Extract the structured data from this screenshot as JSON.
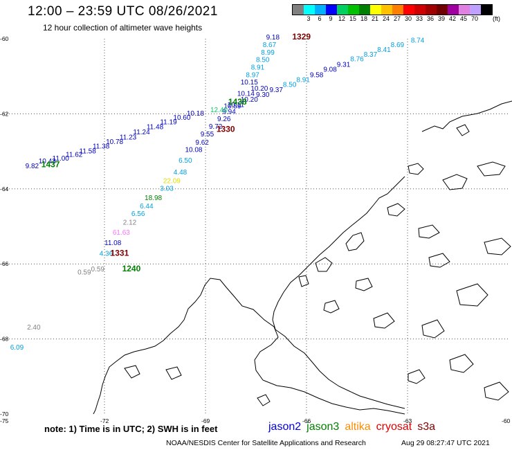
{
  "header": {
    "title": "12:00 – 23:59 UTC 08/26/2021",
    "subtitle": "12 hour collection of altimeter wave heights"
  },
  "colorbar": {
    "unit": "(ft)",
    "colors": [
      "#808080",
      "#00ffff",
      "#00b0ff",
      "#0000ff",
      "#00d060",
      "#00c000",
      "#008000",
      "#ffff00",
      "#ffc000",
      "#ff8000",
      "#ff0000",
      "#d00000",
      "#a00000",
      "#700000",
      "#a000a0",
      "#e080e0",
      "#c0a0ff",
      "#000000"
    ],
    "labels": [
      "",
      "3",
      "6",
      "9",
      "12",
      "15",
      "18",
      "21",
      "24",
      "27",
      "30",
      "33",
      "36",
      "39",
      "42",
      "45",
      "70",
      ""
    ]
  },
  "axes": {
    "lat_labels": [
      "-60",
      "-62",
      "-64",
      "-66",
      "-68",
      "-70"
    ],
    "lon_labels": [
      "-75",
      "-72",
      "-69",
      "-66",
      "-63",
      "-60"
    ]
  },
  "tracks": [
    {
      "time": "1329",
      "color": "#800000",
      "lon": -66.15,
      "lat": -60.02,
      "points": [
        [
          "9.18",
          -67.0,
          -60.02,
          "#0000c0"
        ],
        [
          "8.67",
          -67.1,
          -60.22,
          "#00a0e0"
        ],
        [
          "8.99",
          -67.15,
          -60.42,
          "#00a0e0"
        ],
        [
          "8.50",
          -67.3,
          -60.62,
          "#00a0e0"
        ],
        [
          "8.91",
          -67.45,
          -60.82,
          "#00a0e0"
        ],
        [
          "8.97",
          -67.6,
          -61.02,
          "#00a0e0"
        ],
        [
          "10.15",
          -67.7,
          -61.22,
          "#0000c0"
        ],
        [
          "10.20",
          -67.4,
          -61.38,
          "#0000c0"
        ],
        [
          "10.14",
          -67.8,
          -61.52,
          "#0000c0"
        ],
        [
          "10.89",
          -68.2,
          -61.85,
          "#0000c0"
        ],
        [
          "9.94",
          -68.3,
          -62.0,
          "#0000c0"
        ],
        [
          "9.26",
          -68.45,
          -62.2,
          "#0000c0"
        ],
        [
          "9.72",
          -68.7,
          -62.4,
          "#0000c0"
        ],
        [
          "9.55",
          -68.95,
          -62.6,
          "#0000c0"
        ],
        [
          "9.62",
          -69.1,
          -62.82,
          "#0000c0"
        ],
        [
          "10.08",
          -69.35,
          -63.02,
          "#0000c0"
        ],
        [
          "6.50",
          -69.6,
          -63.3,
          "#00a0e0"
        ],
        [
          "4.48",
          -69.75,
          -63.62,
          "#00a0e0"
        ],
        [
          "22.09",
          -70.0,
          -63.85,
          "#e0e000"
        ],
        [
          "3.03",
          -70.15,
          -64.05,
          "#00a0e0"
        ],
        [
          "18.98",
          -70.55,
          -64.3,
          "#008000"
        ],
        [
          "6.44",
          -70.75,
          -64.52,
          "#00a0e0"
        ],
        [
          "6.56",
          -71.0,
          -64.72,
          "#00a0e0"
        ],
        [
          "2.12",
          -71.25,
          -64.95,
          "#808080"
        ],
        [
          "61.63",
          -71.5,
          -65.22,
          "#ff70ff"
        ],
        [
          "11.08",
          -71.75,
          -65.5,
          "#0000c0"
        ],
        [
          "4.36",
          -71.95,
          -65.78,
          "#00a0e0"
        ]
      ]
    },
    {
      "time": "1438",
      "color": "#008000",
      "lon": -68.05,
      "lat": -61.75,
      "points": [
        [
          "8.74",
          -62.7,
          -60.1,
          "#00a0e0"
        ],
        [
          "8.69",
          -63.3,
          -60.22,
          "#00a0e0"
        ],
        [
          "8.41",
          -63.7,
          -60.35,
          "#00a0e0"
        ],
        [
          "8.37",
          -64.1,
          -60.48,
          "#00a0e0"
        ],
        [
          "8.76",
          -64.5,
          -60.6,
          "#00a0e0"
        ],
        [
          "9.31",
          -64.9,
          -60.75,
          "#0000c0"
        ],
        [
          "9.08",
          -65.3,
          -60.88,
          "#0000c0"
        ],
        [
          "9.58",
          -65.7,
          -61.02,
          "#0000c0"
        ],
        [
          "8.91",
          -66.1,
          -61.15,
          "#00a0e0"
        ],
        [
          "8.50",
          -66.5,
          -61.28,
          "#00a0e0"
        ],
        [
          "9.37",
          -66.9,
          -61.42,
          "#0000c0"
        ],
        [
          "9.30",
          -67.3,
          -61.55,
          "#0000c0"
        ],
        [
          "10.20",
          -67.7,
          -61.68,
          "#0000c0"
        ],
        [
          "10.11",
          -68.1,
          -61.82,
          "#0000c0"
        ],
        [
          "12.40",
          -68.6,
          -61.96,
          "#00d060"
        ],
        [
          "10.18",
          -69.3,
          -62.05,
          "#0000c0"
        ],
        [
          "10.60",
          -69.7,
          -62.16,
          "#0000c0"
        ],
        [
          "11.19",
          -70.1,
          -62.28,
          "#0000c0"
        ],
        [
          "11.48",
          -70.5,
          -62.41,
          "#0000c0"
        ],
        [
          "11.24",
          -70.9,
          -62.55,
          "#0000c0"
        ],
        [
          "11.23",
          -71.3,
          -62.68,
          "#0000c0"
        ],
        [
          "10.78",
          -71.7,
          -62.8,
          "#0000c0"
        ],
        [
          "11.38",
          -72.1,
          -62.92,
          "#0000c0"
        ],
        [
          "11.58",
          -72.5,
          -63.05,
          "#0000c0"
        ],
        [
          "11.62",
          -72.9,
          -63.15,
          "#0000c0"
        ],
        [
          "11.00",
          -73.3,
          -63.25,
          "#0000c0"
        ],
        [
          "10.43",
          -73.7,
          -63.32,
          "#0000c0"
        ],
        [
          "9.82",
          -74.15,
          -63.45,
          "#0000c0"
        ]
      ]
    },
    {
      "time": "1330",
      "color": "#800000",
      "lon": -68.4,
      "lat": -62.48,
      "points": []
    },
    {
      "time": "1437",
      "color": "#008000",
      "lon": -73.6,
      "lat": -63.42,
      "points": []
    },
    {
      "time": "1331",
      "color": "#800000",
      "lon": -71.55,
      "lat": -65.78,
      "points": []
    },
    {
      "time": "1240",
      "color": "#008000",
      "lon": -71.2,
      "lat": -66.2,
      "points": [
        [
          "0.59",
          -72.2,
          -66.2,
          "#808080"
        ],
        [
          "0.59",
          -72.6,
          -66.28,
          "#808080"
        ],
        [
          "2.40",
          -74.1,
          -67.75,
          "#808080"
        ],
        [
          "6.09",
          -74.6,
          -68.28,
          "#00a0e0"
        ]
      ]
    }
  ],
  "footer": {
    "note": "note:  1) Time is in UTC;  2) SWH is in feet",
    "missions": [
      {
        "name": "jason2",
        "color": "#0000e0"
      },
      {
        "name": "jason3",
        "color": "#008000"
      },
      {
        "name": "altika",
        "color": "#ff8c00"
      },
      {
        "name": "cryosat",
        "color": "#e00000"
      },
      {
        "name": "s3a",
        "color": "#800000"
      }
    ],
    "credit": "NOAA/NESDIS Center for Satellite Applications and Research",
    "timestamp": "Aug 29 08:27:47 UTC 2021"
  }
}
